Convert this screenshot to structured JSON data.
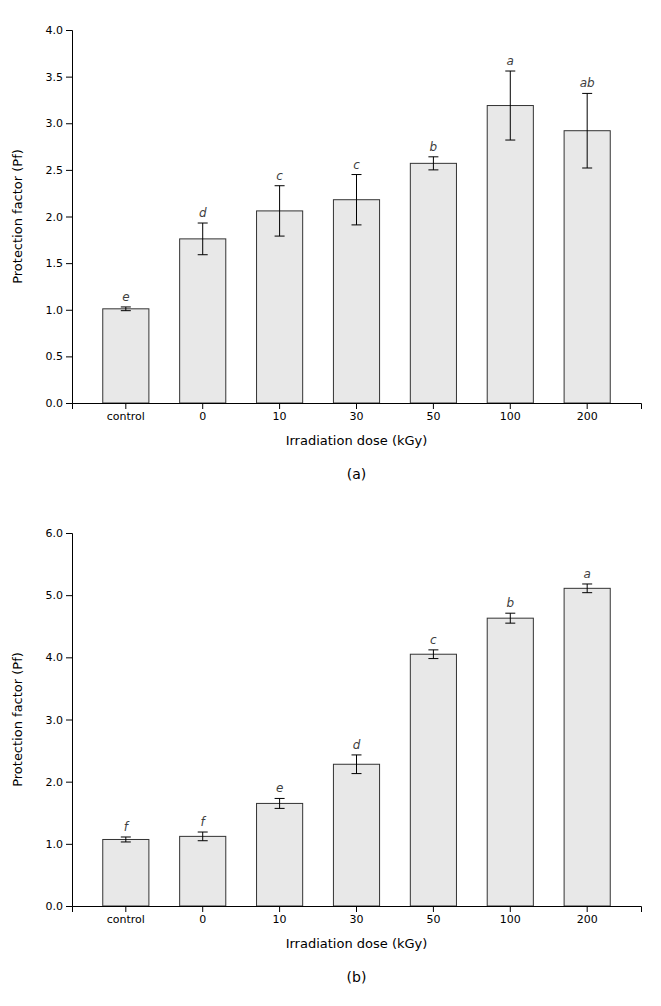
{
  "chart_data": [
    {
      "type": "bar",
      "subtitle": "(a)",
      "x_label": "Irradiation dose (kGy)",
      "y_label": "Protection factor (Pf)",
      "categories": [
        "control",
        "0",
        "10",
        "30",
        "50",
        "100",
        "200"
      ],
      "values": [
        1.01,
        1.76,
        2.06,
        2.18,
        2.57,
        3.19,
        2.92
      ],
      "errors": [
        0.02,
        0.17,
        0.27,
        0.27,
        0.07,
        0.37,
        0.4
      ],
      "annotations": [
        "e",
        "d",
        "c",
        "c",
        "b",
        "a",
        "ab"
      ],
      "color": "#e8e8e8",
      "ylim": [
        0.0,
        4.0
      ],
      "yticks": [
        {
          "value": 0.0,
          "label": "0.0"
        },
        {
          "value": 0.5,
          "label": "0.5"
        },
        {
          "value": 1.0,
          "label": "1.0"
        },
        {
          "value": 1.5,
          "label": "1.5"
        },
        {
          "value": 2.0,
          "label": "2.0"
        },
        {
          "value": 2.5,
          "label": "2.5"
        },
        {
          "value": 3.0,
          "label": "3.0"
        },
        {
          "value": 3.5,
          "label": "3.5"
        },
        {
          "value": 4.0,
          "label": "4.0"
        }
      ],
      "grid": false
    },
    {
      "type": "bar",
      "subtitle": "(b)",
      "x_label": "Irradiation dose (kGy)",
      "y_label": "Protection factor (Pf)",
      "categories": [
        "control",
        "0",
        "10",
        "30",
        "50",
        "100",
        "200"
      ],
      "values": [
        1.07,
        1.12,
        1.65,
        2.28,
        4.05,
        4.63,
        5.11
      ],
      "errors": [
        0.04,
        0.07,
        0.08,
        0.15,
        0.07,
        0.08,
        0.07
      ],
      "annotations": [
        "f",
        "f",
        "e",
        "d",
        "c",
        "b",
        "a"
      ],
      "color": "#e8e8e8",
      "ylim": [
        0.0,
        6.0
      ],
      "yticks": [
        {
          "value": 0.0,
          "label": "0.0"
        },
        {
          "value": 1.0,
          "label": "1.0"
        },
        {
          "value": 2.0,
          "label": "2.0"
        },
        {
          "value": 3.0,
          "label": "3.0"
        },
        {
          "value": 4.0,
          "label": "4.0"
        },
        {
          "value": 5.0,
          "label": "5.0"
        },
        {
          "value": 6.0,
          "label": "6.0"
        }
      ],
      "grid": false
    }
  ]
}
